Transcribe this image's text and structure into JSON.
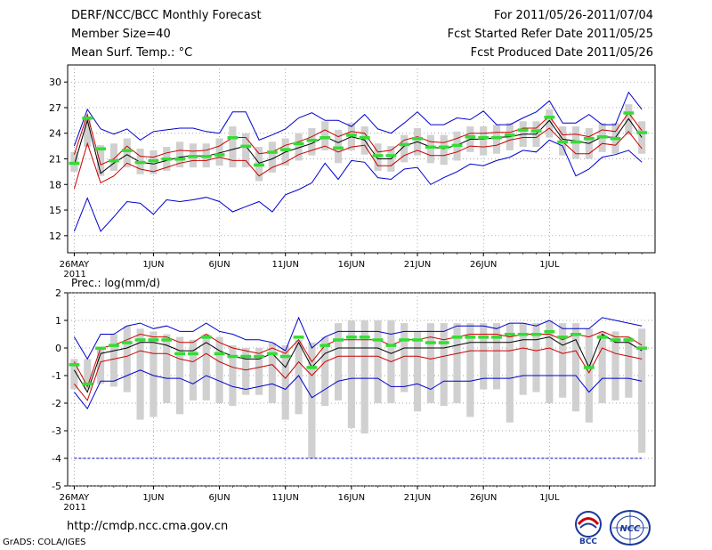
{
  "header": {
    "title": "DERF/NCC/BCC Monthly Forecast",
    "member_size": "Member Size=40",
    "variable": "Mean Surf. Temp.: °C",
    "period": "For 2011/05/26-2011/07/04",
    "refer_date": "Fcst Started Refer Date 2011/05/25",
    "produced_date": "Fcst Produced Date 2011/05/26"
  },
  "footer": {
    "url": "http://cmdp.ncc.cma.gov.cn",
    "credit": "GrADS: COLA/IGES",
    "logo_bcc_text": "BCC",
    "logo_ncc_text": "NCC"
  },
  "colors": {
    "envelope": "#0000cc",
    "spread": "#cc0000",
    "mean": "#000000",
    "box": "#d0d0d0",
    "observed": "#33dd33",
    "grid": "#888888"
  },
  "chart_data": [
    {
      "type": "line",
      "title": "Mean Surf. Temp.: °C",
      "x_tick_labels": [
        "26MAY",
        "1JUN",
        "6JUN",
        "11JUN",
        "16JUN",
        "21JUN",
        "26JUN",
        "1JUL"
      ],
      "x_tick_days": [
        0,
        6,
        11,
        16,
        21,
        26,
        31,
        36
      ],
      "x_year_label": "2011",
      "ylim": [
        10,
        32
      ],
      "y_ticks": [
        12,
        15,
        18,
        21,
        24,
        27,
        30
      ],
      "series": [
        {
          "name": "max",
          "values": [
            12.5,
            16.4,
            12.5,
            14.2,
            16.0,
            15.8,
            14.5,
            16.2,
            16.0,
            16.2,
            16.5,
            16.0,
            14.8,
            15.4,
            16.0,
            14.8,
            16.8,
            17.4,
            18.2,
            20.5,
            18.6,
            20.8,
            20.6,
            18.8,
            18.6,
            19.8,
            20.0,
            18.0,
            18.8,
            19.5,
            20.4,
            20.2,
            20.8,
            21.2,
            22.0,
            21.8,
            23.2,
            22.5,
            19.0,
            19.8,
            21.2,
            21.5,
            22.0,
            20.6
          ]
        },
        {
          "name": "p90",
          "values": [
            17.5,
            22.8,
            18.2,
            19.0,
            20.5,
            19.8,
            19.5,
            20.0,
            20.5,
            20.8,
            20.8,
            21.2,
            20.8,
            20.8,
            19.0,
            20.0,
            20.6,
            21.5,
            22.0,
            22.5,
            21.8,
            22.4,
            22.6,
            20.2,
            20.2,
            21.4,
            22.0,
            21.4,
            21.4,
            21.8,
            22.5,
            22.4,
            22.6,
            23.2,
            23.5,
            23.5,
            24.6,
            23.0,
            21.6,
            21.6,
            22.8,
            22.6,
            24.2,
            22.2
          ]
        },
        {
          "name": "mean",
          "values": [
            20.3,
            25.5,
            19.3,
            20.5,
            21.5,
            20.6,
            20.4,
            20.8,
            21.2,
            21.4,
            21.3,
            21.7,
            22.1,
            22.5,
            20.5,
            21.0,
            21.8,
            22.3,
            22.8,
            23.6,
            22.9,
            23.6,
            23.2,
            21.0,
            21.0,
            22.5,
            23.0,
            22.4,
            22.2,
            22.6,
            23.3,
            23.3,
            23.5,
            23.6,
            23.9,
            23.9,
            25.5,
            23.3,
            23.1,
            22.8,
            23.6,
            23.5,
            25.7,
            23.5
          ]
        },
        {
          "name": "p10",
          "values": [
            21.5,
            26.2,
            20.3,
            21.0,
            22.5,
            21.3,
            21.2,
            21.7,
            22.0,
            21.9,
            22.0,
            22.5,
            23.5,
            23.5,
            21.6,
            21.8,
            22.6,
            23.0,
            23.6,
            24.4,
            23.6,
            24.2,
            24.0,
            21.8,
            22.0,
            23.2,
            23.6,
            23.0,
            22.9,
            23.4,
            24.0,
            24.0,
            24.1,
            24.1,
            24.6,
            24.6,
            26.0,
            23.8,
            23.9,
            23.6,
            24.4,
            24.2,
            26.4,
            24.3
          ]
        },
        {
          "name": "min",
          "values": [
            22.5,
            26.8,
            24.5,
            23.9,
            24.5,
            23.2,
            24.2,
            24.4,
            24.6,
            24.6,
            24.2,
            24.0,
            26.5,
            26.5,
            23.2,
            23.8,
            24.5,
            25.8,
            26.4,
            25.5,
            25.5,
            24.8,
            26.2,
            24.5,
            24.0,
            25.2,
            26.5,
            25.0,
            25.0,
            25.8,
            25.6,
            26.6,
            25.0,
            25.0,
            25.8,
            26.5,
            27.8,
            25.2,
            25.2,
            26.2,
            25.0,
            25.0,
            28.8,
            26.8
          ]
        },
        {
          "name": "observed",
          "values": [
            20.5,
            25.8,
            22.2,
            20.8,
            22.0,
            20.6,
            20.8,
            21.0,
            21.0,
            21.3,
            21.3,
            21.5,
            23.5,
            22.5,
            20.3,
            21.8,
            22.1,
            22.8,
            23.2,
            23.5,
            22.3,
            23.8,
            23.5,
            21.4,
            21.4,
            22.7,
            23.4,
            22.4,
            22.4,
            22.6,
            23.6,
            23.5,
            23.5,
            23.8,
            24.4,
            24.3,
            25.9,
            23.0,
            23.0,
            23.4,
            23.6,
            23.4,
            26.4,
            24.1
          ]
        },
        {
          "name": "box_low",
          "values": [
            19.5,
            22.4,
            19.0,
            19.6,
            20.0,
            19.2,
            19.2,
            19.6,
            20.0,
            20.0,
            20.0,
            20.2,
            20.0,
            20.0,
            18.4,
            19.4,
            20.2,
            20.8,
            21.4,
            22.0,
            20.5,
            22.0,
            21.5,
            19.6,
            19.5,
            20.6,
            21.4,
            20.5,
            20.3,
            20.8,
            21.8,
            21.4,
            21.6,
            22.0,
            22.4,
            22.4,
            23.5,
            21.4,
            21.0,
            21.0,
            21.8,
            21.6,
            23.8,
            21.6
          ]
        },
        {
          "name": "box_high",
          "values": [
            21.8,
            25.6,
            22.6,
            22.8,
            23.4,
            22.2,
            22.0,
            22.4,
            23.0,
            22.8,
            22.8,
            23.4,
            24.8,
            24.0,
            22.4,
            23.0,
            23.4,
            24.0,
            24.6,
            25.4,
            24.4,
            25.2,
            24.8,
            22.8,
            22.5,
            23.8,
            24.6,
            23.8,
            23.8,
            24.2,
            24.8,
            24.8,
            25.0,
            25.2,
            25.4,
            25.4,
            26.8,
            24.8,
            24.8,
            24.6,
            25.2,
            25.2,
            27.4,
            25.4
          ]
        }
      ]
    },
    {
      "type": "line",
      "title": "Prec.: log(mm/d)",
      "x_tick_labels": [
        "26MAY",
        "1JUN",
        "6JUN",
        "11JUN",
        "16JUN",
        "21JUN",
        "26JUN",
        "1JUL"
      ],
      "x_tick_days": [
        0,
        6,
        11,
        16,
        21,
        26,
        31,
        36
      ],
      "x_year_label": "2011",
      "ylim": [
        -5,
        2
      ],
      "y_ticks": [
        -5,
        -4,
        -3,
        -2,
        -1,
        0,
        1,
        2
      ],
      "series": [
        {
          "name": "max",
          "values": [
            0.4,
            -0.4,
            0.5,
            0.5,
            0.8,
            0.9,
            0.7,
            0.8,
            0.6,
            0.6,
            0.9,
            0.6,
            0.5,
            0.3,
            0.3,
            0.2,
            -0.1,
            1.1,
            0.0,
            0.4,
            0.6,
            0.6,
            0.6,
            0.6,
            0.5,
            0.6,
            0.6,
            0.6,
            0.6,
            0.8,
            0.8,
            0.8,
            0.7,
            0.9,
            0.9,
            0.8,
            1.0,
            0.7,
            0.7,
            0.7,
            1.1,
            1.0,
            0.9,
            0.8
          ]
        },
        {
          "name": "p90",
          "values": [
            -0.5,
            -1.4,
            0.0,
            0.1,
            0.3,
            0.5,
            0.4,
            0.4,
            0.2,
            0.2,
            0.5,
            0.2,
            0.0,
            -0.1,
            -0.2,
            0.0,
            -0.2,
            0.3,
            -0.5,
            0.1,
            0.3,
            0.3,
            0.3,
            0.3,
            0.1,
            0.3,
            0.3,
            0.4,
            0.3,
            0.4,
            0.5,
            0.5,
            0.5,
            0.4,
            0.5,
            0.5,
            0.5,
            0.3,
            0.5,
            0.4,
            0.6,
            0.4,
            0.4,
            0.1
          ]
        },
        {
          "name": "mean",
          "values": [
            -0.8,
            -1.6,
            -0.2,
            -0.1,
            0.0,
            0.2,
            0.2,
            0.1,
            -0.1,
            -0.1,
            0.2,
            -0.1,
            -0.3,
            -0.4,
            -0.4,
            -0.2,
            -0.7,
            0.2,
            -0.7,
            -0.2,
            0.0,
            0.0,
            0.0,
            0.0,
            -0.2,
            0.0,
            0.0,
            0.0,
            0.0,
            0.1,
            0.2,
            0.2,
            0.2,
            0.2,
            0.3,
            0.3,
            0.4,
            0.1,
            0.3,
            -0.7,
            0.5,
            0.2,
            0.2,
            -0.1
          ]
        },
        {
          "name": "p10",
          "values": [
            -1.3,
            -1.9,
            -0.5,
            -0.4,
            -0.3,
            -0.1,
            -0.2,
            -0.2,
            -0.4,
            -0.5,
            -0.2,
            -0.5,
            -0.7,
            -0.8,
            -0.7,
            -0.6,
            -1.1,
            -0.5,
            -1.0,
            -0.5,
            -0.3,
            -0.3,
            -0.3,
            -0.3,
            -0.5,
            -0.3,
            -0.3,
            -0.4,
            -0.3,
            -0.2,
            -0.1,
            -0.1,
            -0.1,
            -0.1,
            0.0,
            -0.1,
            0.0,
            -0.2,
            -0.1,
            -0.9,
            0.0,
            -0.2,
            -0.3,
            -0.4
          ]
        },
        {
          "name": "min",
          "values": [
            -1.6,
            -2.2,
            -1.2,
            -1.2,
            -1.0,
            -0.8,
            -1.0,
            -1.1,
            -1.1,
            -1.3,
            -1.0,
            -1.2,
            -1.4,
            -1.5,
            -1.4,
            -1.3,
            -1.5,
            -1.0,
            -1.8,
            -1.5,
            -1.2,
            -1.1,
            -1.1,
            -1.1,
            -1.4,
            -1.4,
            -1.3,
            -1.5,
            -1.2,
            -1.2,
            -1.2,
            -1.1,
            -1.1,
            -1.1,
            -1.0,
            -1.0,
            -1.0,
            -1.0,
            -1.0,
            -1.6,
            -1.1,
            -1.1,
            -1.1,
            -1.2
          ]
        },
        {
          "name": "observed",
          "values": [
            -0.6,
            -1.3,
            0.0,
            0.1,
            0.2,
            0.3,
            0.3,
            0.3,
            -0.2,
            -0.2,
            0.4,
            -0.2,
            -0.3,
            -0.3,
            -0.3,
            -0.2,
            -0.3,
            0.4,
            -0.7,
            0.1,
            0.3,
            0.4,
            0.4,
            0.3,
            0.1,
            0.3,
            0.3,
            0.2,
            0.2,
            0.4,
            0.4,
            0.4,
            0.4,
            0.5,
            0.5,
            0.5,
            0.6,
            0.4,
            0.5,
            -0.7,
            0.4,
            0.3,
            0.3,
            0.0
          ]
        },
        {
          "name": "box_low",
          "values": [
            -1.5,
            -1.5,
            -1.3,
            -1.4,
            -1.6,
            -2.6,
            -2.5,
            -2.0,
            -2.4,
            -1.9,
            -1.9,
            -2.0,
            -2.1,
            -1.7,
            -1.7,
            -2.0,
            -2.6,
            -2.4,
            -4.0,
            -2.1,
            -1.9,
            -2.9,
            -3.1,
            -2.0,
            -2.0,
            -1.6,
            -2.3,
            -2.0,
            -2.1,
            -2.0,
            -2.5,
            -1.5,
            -1.5,
            -2.7,
            -1.7,
            -1.6,
            -2.0,
            -1.8,
            -2.3,
            -2.7,
            -2.0,
            -1.9,
            -1.8,
            -3.8
          ]
        },
        {
          "name": "box_high",
          "values": [
            -0.4,
            -0.4,
            0.0,
            0.5,
            0.8,
            0.7,
            0.6,
            0.5,
            0.4,
            0.3,
            0.5,
            0.4,
            0.1,
            0.0,
            0.0,
            0.2,
            0.1,
            0.3,
            0.2,
            0.4,
            0.9,
            1.0,
            1.0,
            1.0,
            1.0,
            0.9,
            0.6,
            0.9,
            0.9,
            0.9,
            0.9,
            0.9,
            0.9,
            0.9,
            0.9,
            0.9,
            1.0,
            0.9,
            0.9,
            0.7,
            0.6,
            0.6,
            0.4,
            0.7
          ]
        }
      ]
    }
  ]
}
